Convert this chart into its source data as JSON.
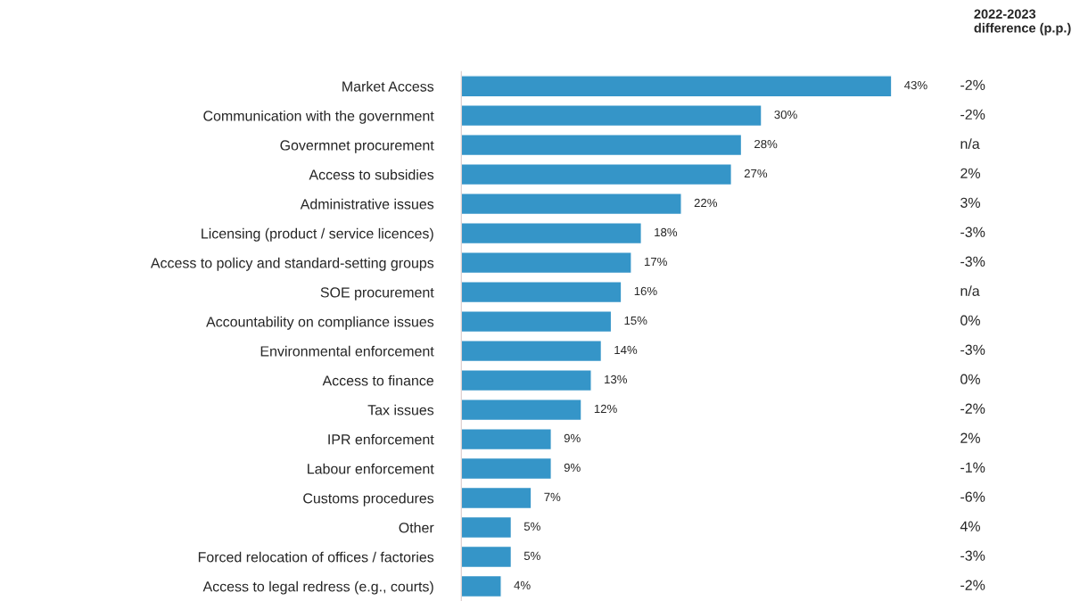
{
  "chart_data": {
    "type": "bar",
    "orientation": "horizontal",
    "categories": [
      "Market Access",
      "Communication with the government",
      "Govermnet procurement",
      "Access to subsidies",
      "Administrative issues",
      "Licensing (product / service licences)",
      "Access to policy and standard-setting groups",
      "SOE procurement",
      "Accountability on compliance issues",
      "Environmental enforcement",
      "Access to finance",
      "Tax issues",
      "IPR enforcement",
      "Labour enforcement",
      "Customs procedures",
      "Other",
      "Forced relocation of offices / factories",
      "Access to legal redress (e.g., courts)"
    ],
    "values": [
      43,
      30,
      28,
      27,
      22,
      18,
      17,
      16,
      15,
      14,
      13,
      12,
      9,
      9,
      7,
      5,
      5,
      4
    ],
    "value_labels": [
      "43%",
      "30%",
      "28%",
      "27%",
      "22%",
      "18%",
      "17%",
      "16%",
      "15%",
      "14%",
      "13%",
      "12%",
      "9%",
      "9%",
      "7%",
      "5%",
      "5%",
      "4%"
    ],
    "color": "#3595c8",
    "annotations": [
      "2022-2023\ndifference (p.p.)",
      "-2%",
      "-2%",
      "n/a",
      "2%",
      "3%",
      "-3%",
      "-3%",
      "n/a",
      "0%",
      "-3%",
      "0%",
      "-2%",
      "2%",
      "-1%",
      "-6%",
      "4%",
      "-3%",
      "-2%"
    ],
    "grid": false,
    "legend": false
  }
}
